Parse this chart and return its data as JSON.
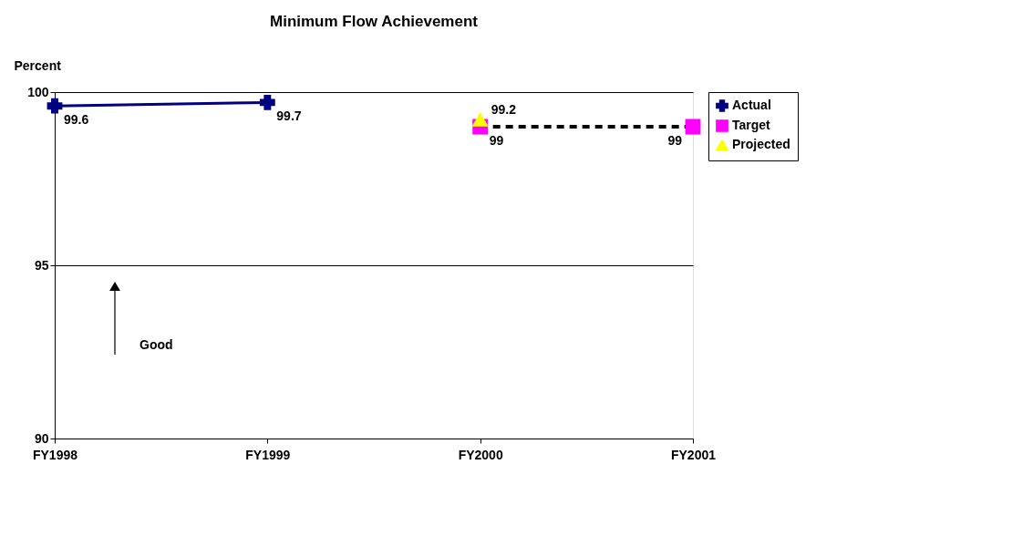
{
  "chart_data": {
    "type": "line",
    "title": "Minimum Flow Achievement",
    "ylabel": "Percent",
    "categories": [
      "FY1998",
      "FY1999",
      "FY2000",
      "FY2001"
    ],
    "series": [
      {
        "name": "Actual",
        "color": "#000080",
        "values": [
          99.6,
          99.7,
          null,
          null
        ],
        "marker": "cross",
        "line_style": "solid"
      },
      {
        "name": "Target",
        "color": "#ff00ff",
        "values": [
          null,
          null,
          99,
          99
        ],
        "marker": "square",
        "line_style": "dashed"
      },
      {
        "name": "Projected",
        "color": "#ffff00",
        "values": [
          null,
          null,
          99.2,
          null
        ],
        "marker": "triangle",
        "line_style": "solid"
      }
    ],
    "ylim": [
      90,
      100
    ],
    "yticks": [
      90,
      95,
      100
    ],
    "grid": "y",
    "legend": "right",
    "data_labels": true,
    "annotations": [
      "Good"
    ]
  }
}
